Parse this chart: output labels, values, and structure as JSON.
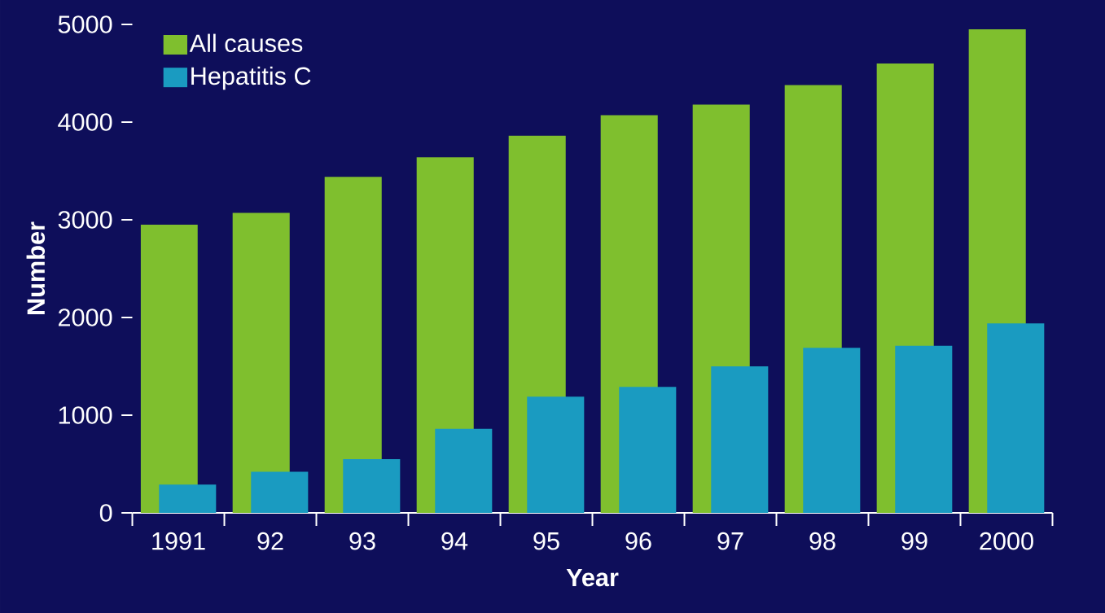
{
  "chart_data": {
    "type": "bar",
    "xlabel": "Year",
    "ylabel": "Number",
    "categories": [
      "1991",
      "92",
      "93",
      "94",
      "95",
      "96",
      "97",
      "98",
      "99",
      "2000"
    ],
    "series": [
      {
        "name": "All causes",
        "color": "#7fbf2e",
        "values": [
          2950,
          3070,
          3440,
          3640,
          3860,
          4070,
          4180,
          4380,
          4600,
          4950
        ]
      },
      {
        "name": "Hepatitis C",
        "color": "#1a9bc1",
        "values": [
          290,
          420,
          550,
          860,
          1190,
          1290,
          1500,
          1690,
          1710,
          1940
        ]
      }
    ],
    "ylim": [
      0,
      5000
    ],
    "yticks": [
      0,
      1000,
      2000,
      3000,
      4000,
      5000
    ],
    "legend": "top left"
  }
}
